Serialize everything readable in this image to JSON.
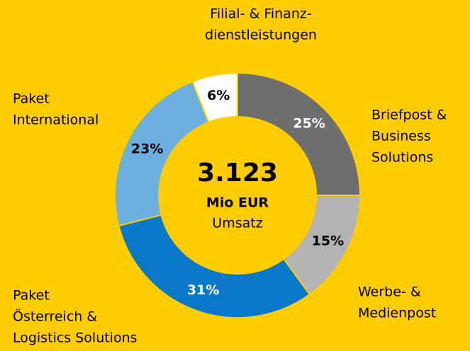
{
  "chart_data": {
    "type": "donut",
    "center_lines": [
      "3.123",
      "Mio EUR",
      "Umsatz"
    ],
    "categories": [
      [
        "Briefpost &",
        "Business",
        "Solutions"
      ],
      [
        "Werbe- &",
        "Medienpost"
      ],
      [
        "Paket",
        "Österreich &",
        "Logistics Solutions"
      ],
      [
        "Paket",
        "International"
      ],
      [
        "Filial- & Finanz-",
        "dienstleistungen"
      ]
    ],
    "values": [
      25,
      15,
      31,
      23,
      6
    ],
    "value_labels": [
      "25%",
      "15%",
      "31%",
      "23%",
      "6%"
    ],
    "colors": [
      "#6e6e6e",
      "#b3b3b3",
      "#0a78c8",
      "#6aafe0",
      "#ffffff"
    ],
    "label_colors": [
      "#ffffff",
      "#000000",
      "#ffffff",
      "#000000",
      "#000000"
    ],
    "background": "#ffcc00"
  }
}
